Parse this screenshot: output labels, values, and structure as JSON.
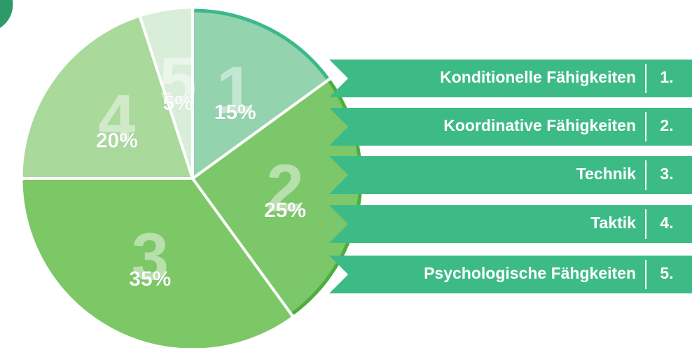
{
  "chart_data": {
    "type": "pie",
    "categories": [
      "Konditionelle Fähigkeiten",
      "Koordinative Fähigkeiten",
      "Technik",
      "Taktik",
      "Psychologische Fähgkeiten"
    ],
    "values": [
      15,
      25,
      35,
      20,
      5
    ],
    "value_labels": [
      "15%",
      "25%",
      "35%",
      "20%",
      "5%"
    ],
    "slice_numbers": [
      "1",
      "2",
      "3",
      "4",
      "5"
    ],
    "legend_numbers": [
      "1.",
      "2.",
      "3.",
      "4.",
      "5."
    ],
    "colors": [
      "#93d3ad",
      "#7cc76a",
      "#7cc766",
      "#a9d99b",
      "#d8eed8"
    ],
    "edge_colors": [
      "#3cb98b",
      "#4caf3d",
      "#7cc766",
      "#a9d99b",
      "#d8eed8"
    ],
    "legend_color": "#3dbb87"
  }
}
